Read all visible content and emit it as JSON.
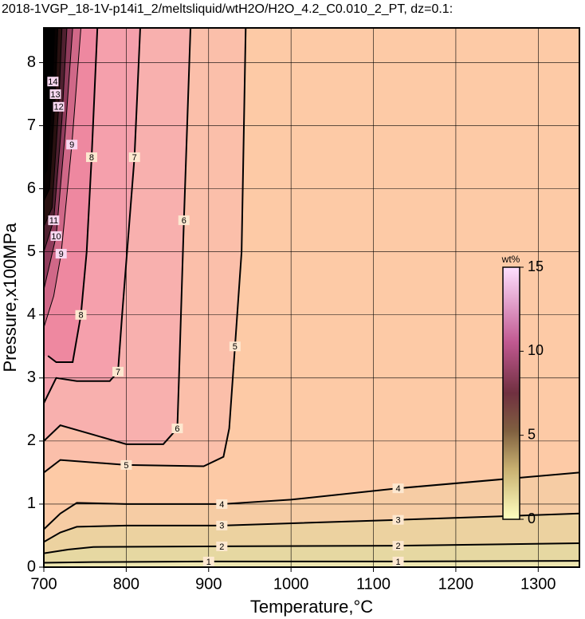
{
  "chart_data": {
    "type": "contour",
    "title": "2018-1VGP_18-1V-p14i1_2/meltsliquid/wtH2O/H2O_4.2_C0.010_2_PT, dz=0.1:",
    "xlabel": "Temperature,°C",
    "ylabel": "Pressure,x100MPa",
    "xlim": [
      700,
      1350
    ],
    "ylim": [
      0,
      8.55
    ],
    "xticks": [
      700,
      800,
      900,
      1000,
      1100,
      1200,
      1300
    ],
    "yticks": [
      0,
      1,
      2,
      3,
      4,
      5,
      6,
      7,
      8
    ],
    "grid": true,
    "contours": [
      {
        "level": 1,
        "x": [
          700,
          760,
          900,
          1130,
          1350
        ],
        "y": [
          0.07,
          0.08,
          0.09,
          0.09,
          0.1
        ]
      },
      {
        "level": 2,
        "x": [
          700,
          730,
          760,
          916,
          1130,
          1350
        ],
        "y": [
          0.22,
          0.28,
          0.32,
          0.33,
          0.34,
          0.38
        ]
      },
      {
        "level": 3,
        "x": [
          700,
          720,
          740,
          800,
          916,
          1130,
          1350
        ],
        "y": [
          0.4,
          0.55,
          0.64,
          0.66,
          0.66,
          0.75,
          0.85
        ]
      },
      {
        "level": 4,
        "x": [
          700,
          720,
          740,
          800,
          916,
          1000,
          1130,
          1350
        ],
        "y": [
          0.6,
          0.85,
          1.02,
          1.0,
          1.0,
          1.07,
          1.25,
          1.5
        ]
      },
      {
        "level": 5,
        "x": [
          700,
          720,
          800,
          894,
          918,
          925,
          932,
          940,
          945
        ],
        "y": [
          1.5,
          1.7,
          1.62,
          1.6,
          1.75,
          2.2,
          3.5,
          5.0,
          8.55
        ]
      },
      {
        "level": 6,
        "x": [
          700,
          720,
          760,
          800,
          845,
          862,
          864,
          870,
          878
        ],
        "y": [
          2.0,
          2.25,
          2.1,
          1.95,
          1.95,
          2.2,
          3.0,
          5.5,
          8.55
        ]
      },
      {
        "level": 7,
        "x": [
          700,
          715,
          740,
          780,
          790,
          795,
          810,
          817
        ],
        "y": [
          2.6,
          3.0,
          2.95,
          2.95,
          3.1,
          4.0,
          6.5,
          8.55
        ]
      },
      {
        "level": 8,
        "x": [
          705,
          715,
          735,
          745,
          752,
          758,
          765
        ],
        "y": [
          3.35,
          3.25,
          3.25,
          4.0,
          5.0,
          6.5,
          8.55
        ]
      },
      {
        "level": 9,
        "x": [
          700,
          712,
          721,
          734,
          745
        ],
        "y": [
          3.8,
          4.3,
          4.97,
          6.7,
          8.55
        ]
      },
      {
        "level": 10,
        "x": [
          700,
          715,
          726,
          735
        ],
        "y": [
          4.4,
          5.25,
          6.9,
          8.55
        ]
      },
      {
        "level": 11,
        "x": [
          700,
          712,
          722,
          728
        ],
        "y": [
          5.0,
          5.5,
          7.1,
          8.55
        ]
      },
      {
        "level": 12,
        "x": [
          700,
          710,
          718,
          722
        ],
        "y": [
          5.4,
          5.7,
          7.3,
          8.55
        ]
      },
      {
        "level": 13,
        "x": [
          700,
          707,
          714,
          717
        ],
        "y": [
          5.8,
          6.0,
          7.5,
          8.55
        ]
      },
      {
        "level": 14,
        "x": [
          700,
          704,
          711,
          713
        ],
        "y": [
          6.2,
          6.3,
          7.7,
          8.55
        ]
      }
    ],
    "colorbar": {
      "label": "wt%",
      "lim": [
        0,
        15
      ],
      "ticks": [
        0,
        5,
        10,
        15
      ]
    }
  }
}
